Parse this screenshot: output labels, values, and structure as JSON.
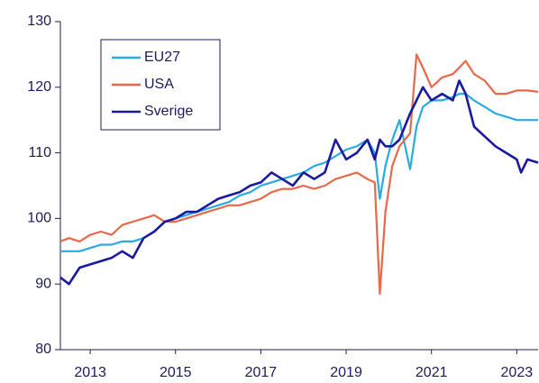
{
  "chart_data": {
    "type": "line",
    "x": [
      2012.8,
      2013.0,
      2013.25,
      2013.5,
      2013.75,
      2014.0,
      2014.25,
      2014.5,
      2014.75,
      2015.0,
      2015.25,
      2015.5,
      2015.75,
      2016.0,
      2016.25,
      2016.5,
      2016.75,
      2017.0,
      2017.25,
      2017.5,
      2017.75,
      2018.0,
      2018.25,
      2018.5,
      2018.75,
      2019.0,
      2019.25,
      2019.5,
      2019.75,
      2020.0,
      2020.17,
      2020.29,
      2020.42,
      2020.58,
      2020.75,
      2021.0,
      2021.15,
      2021.3,
      2021.5,
      2021.75,
      2022.0,
      2022.15,
      2022.3,
      2022.5,
      2022.75,
      2023.0,
      2023.25,
      2023.5,
      2023.6,
      2023.75,
      2024.0
    ],
    "series": [
      {
        "name": "EU27",
        "color": "#29abe2",
        "values": [
          95,
          95,
          95,
          95.5,
          96,
          96,
          96.5,
          96.5,
          97,
          98,
          99.5,
          100,
          100.5,
          101,
          101.5,
          102,
          102.5,
          103.5,
          104,
          105,
          105.5,
          106,
          106.5,
          107,
          108,
          108.5,
          109.5,
          110.5,
          111,
          112,
          110,
          103,
          108,
          112,
          115,
          107.5,
          114,
          117,
          118,
          118,
          118.5,
          119,
          119,
          118,
          117,
          116,
          115.5,
          115,
          115,
          115,
          115
        ]
      },
      {
        "name": "USA",
        "color": "#e8694a",
        "values": [
          96.5,
          97,
          96.5,
          97.5,
          98,
          97.5,
          99,
          99.5,
          100,
          100.5,
          99.5,
          99.5,
          100,
          100.5,
          101,
          101.5,
          102,
          102,
          102.5,
          103,
          104,
          104.5,
          104.5,
          105,
          104.5,
          105,
          106,
          106.5,
          107,
          106,
          105.5,
          88.5,
          101,
          108,
          111,
          113,
          125,
          123,
          120,
          121.5,
          122,
          123,
          124,
          122,
          121,
          119,
          119,
          119.5,
          119.5,
          119.5,
          119.3
        ]
      },
      {
        "name": "Sverige",
        "color": "#1a1aa0",
        "values": [
          91,
          90,
          92.5,
          93,
          93.5,
          94,
          95,
          94,
          97,
          98,
          99.5,
          100,
          101,
          101,
          102,
          103,
          103.5,
          104,
          105,
          105.5,
          107,
          106,
          105,
          107,
          106,
          107,
          112,
          109,
          110,
          112,
          109,
          112,
          111,
          111,
          112,
          116,
          118,
          120,
          118,
          119,
          118,
          121,
          119,
          114,
          112.5,
          111,
          110,
          109,
          107,
          109,
          108.5
        ]
      }
    ],
    "xlim": [
      2012.8,
      2024.0
    ],
    "xticks": [
      {
        "value": 2013.5,
        "label": "2013"
      },
      {
        "value": 2015.5,
        "label": "2015"
      },
      {
        "value": 2017.5,
        "label": "2017"
      },
      {
        "value": 2019.5,
        "label": "2019"
      },
      {
        "value": 2021.5,
        "label": "2021"
      },
      {
        "value": 2023.5,
        "label": "2023"
      }
    ],
    "ylim": [
      80,
      130
    ],
    "yticks": [
      80,
      90,
      100,
      110,
      120,
      130
    ],
    "grid": false,
    "legend": "upper left"
  }
}
